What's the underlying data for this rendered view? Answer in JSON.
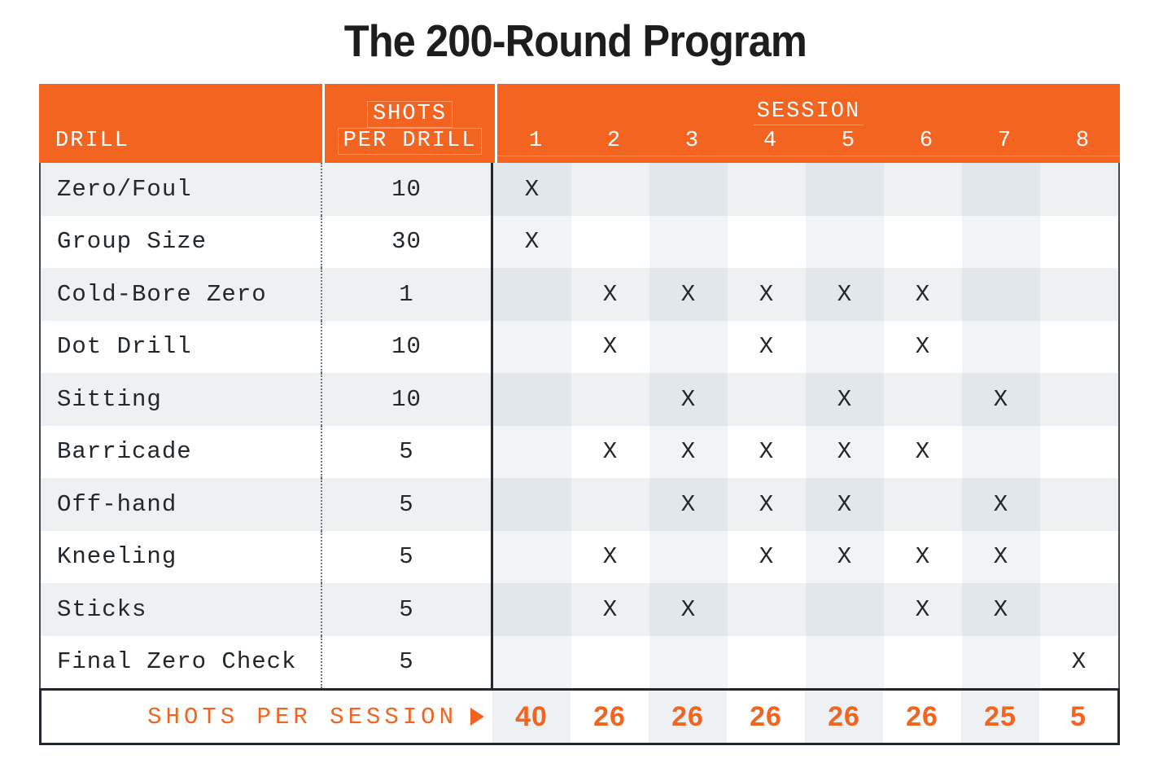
{
  "title": "The 200-Round Program",
  "chart_data": {
    "type": "table",
    "title": "The 200-Round Program",
    "header": {
      "drill": "DRILL",
      "shots_line1": "SHOTS",
      "shots_line2": "PER DRILL",
      "session": "SESSION",
      "session_numbers": [
        "1",
        "2",
        "3",
        "4",
        "5",
        "6",
        "7",
        "8"
      ]
    },
    "mark": "X",
    "rows": [
      {
        "drill": "Zero/Foul",
        "shots_per_drill": "10",
        "sessions": [
          1
        ]
      },
      {
        "drill": "Group Size",
        "shots_per_drill": "30",
        "sessions": [
          1
        ]
      },
      {
        "drill": "Cold-Bore Zero",
        "shots_per_drill": "1",
        "sessions": [
          2,
          3,
          4,
          5,
          6
        ]
      },
      {
        "drill": "Dot Drill",
        "shots_per_drill": "10",
        "sessions": [
          2,
          4,
          6
        ]
      },
      {
        "drill": "Sitting",
        "shots_per_drill": "10",
        "sessions": [
          3,
          5,
          7
        ]
      },
      {
        "drill": "Barricade",
        "shots_per_drill": "5",
        "sessions": [
          2,
          3,
          4,
          5,
          6
        ]
      },
      {
        "drill": "Off-hand",
        "shots_per_drill": "5",
        "sessions": [
          3,
          4,
          5,
          7
        ]
      },
      {
        "drill": "Kneeling",
        "shots_per_drill": "5",
        "sessions": [
          2,
          4,
          5,
          6,
          7
        ]
      },
      {
        "drill": "Sticks",
        "shots_per_drill": "5",
        "sessions": [
          2,
          3,
          6,
          7
        ]
      },
      {
        "drill": "Final Zero Check",
        "shots_per_drill": "5",
        "sessions": [
          8
        ]
      }
    ],
    "footer": {
      "label": "SHOTS PER SESSION",
      "values": [
        "40",
        "26",
        "26",
        "26",
        "26",
        "26",
        "25",
        "5"
      ]
    }
  },
  "colors": {
    "accent_orange": "#F2641F",
    "ink": "#22272B",
    "row_gray": "#EDF1F2",
    "row_gray_tinted": "#E1E7EB",
    "row_white_tinted": "#F1F4F6",
    "footer_tint": "#EDF1F3",
    "border_dark": "#22272B"
  }
}
